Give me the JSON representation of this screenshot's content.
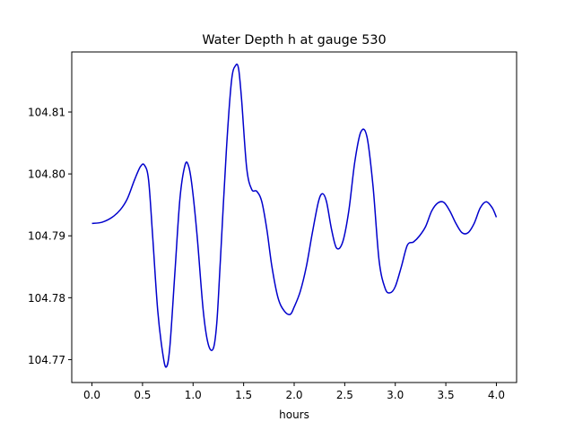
{
  "chart_data": {
    "type": "line",
    "title": "Water Depth h at gauge 530",
    "xlabel": "hours",
    "ylabel": "",
    "xlim": [
      -0.2,
      4.2
    ],
    "ylim": [
      104.7663,
      104.8197
    ],
    "xticks": [
      0.0,
      0.5,
      1.0,
      1.5,
      2.0,
      2.5,
      3.0,
      3.5,
      4.0
    ],
    "xtick_labels": [
      "0.0",
      "0.5",
      "1.0",
      "1.5",
      "2.0",
      "2.5",
      "3.0",
      "3.5",
      "4.0"
    ],
    "yticks": [
      104.77,
      104.78,
      104.79,
      104.8,
      104.81
    ],
    "ytick_labels": [
      "104.77",
      "104.78",
      "104.79",
      "104.80",
      "104.81"
    ],
    "grid": false,
    "legend": "none",
    "series": [
      {
        "color": "#0000cc",
        "x": [
          0.0,
          0.1,
          0.2,
          0.28,
          0.35,
          0.42,
          0.48,
          0.52,
          0.56,
          0.6,
          0.65,
          0.7,
          0.735,
          0.77,
          0.82,
          0.87,
          0.92,
          0.955,
          0.99,
          1.04,
          1.1,
          1.15,
          1.2,
          1.235,
          1.27,
          1.33,
          1.38,
          1.42,
          1.45,
          1.48,
          1.53,
          1.58,
          1.63,
          1.68,
          1.73,
          1.78,
          1.84,
          1.9,
          1.96,
          2.0,
          2.06,
          2.12,
          2.18,
          2.24,
          2.28,
          2.32,
          2.37,
          2.42,
          2.48,
          2.54,
          2.6,
          2.66,
          2.72,
          2.78,
          2.84,
          2.9,
          2.95,
          3.0,
          3.06,
          3.12,
          3.18,
          3.24,
          3.3,
          3.36,
          3.42,
          3.48,
          3.54,
          3.6,
          3.66,
          3.72,
          3.78,
          3.84,
          3.9,
          3.96,
          4.0
        ],
        "y": [
          104.792,
          104.7922,
          104.793,
          104.7942,
          104.796,
          104.799,
          104.8012,
          104.8014,
          104.799,
          104.79,
          104.778,
          104.771,
          104.7688,
          104.772,
          104.784,
          104.796,
          104.8014,
          104.8013,
          104.798,
          104.79,
          104.778,
          104.7725,
          104.7718,
          104.776,
          104.786,
          104.804,
          104.815,
          104.8175,
          104.817,
          104.812,
          104.801,
          104.7975,
          104.7972,
          104.7955,
          104.791,
          104.785,
          104.78,
          104.7779,
          104.7773,
          104.7785,
          104.781,
          104.785,
          104.7905,
          104.7955,
          104.7968,
          104.7955,
          104.791,
          104.788,
          104.789,
          104.794,
          104.802,
          104.8068,
          104.806,
          104.798,
          104.786,
          104.7815,
          104.7808,
          104.7818,
          104.785,
          104.7885,
          104.789,
          104.79,
          104.7915,
          104.794,
          104.7953,
          104.7954,
          104.794,
          104.792,
          104.7905,
          104.7905,
          104.792,
          104.7945,
          104.7955,
          104.7945,
          104.793
        ]
      }
    ]
  }
}
